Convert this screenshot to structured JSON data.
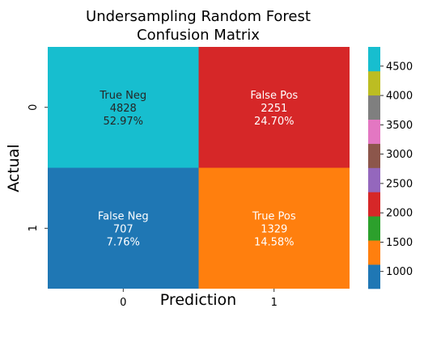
{
  "chart_data": {
    "type": "heatmap",
    "title_lines": [
      "Undersampling Random Forest",
      "Confusion Matrix"
    ],
    "xlabel": "Prediction",
    "ylabel": "Actual",
    "x_categories": [
      "0",
      "1"
    ],
    "y_categories": [
      "0",
      "1"
    ],
    "cells": [
      {
        "row": 0,
        "col": 0,
        "label": "True Neg",
        "count": "4828",
        "percent": "52.97%",
        "value": 4828,
        "color": "#17becf"
      },
      {
        "row": 0,
        "col": 1,
        "label": "False Pos",
        "count": "2251",
        "percent": "24.70%",
        "value": 2251,
        "color": "#d62728"
      },
      {
        "row": 1,
        "col": 0,
        "label": "False Neg",
        "count": "707",
        "percent": "7.76%",
        "value": 707,
        "color": "#1f77b4"
      },
      {
        "row": 1,
        "col": 1,
        "label": "True Pos",
        "count": "1329",
        "percent": "14.58%",
        "value": 1329,
        "color": "#ff7f0e"
      }
    ],
    "colorbar": {
      "range": [
        707,
        4828
      ],
      "ticks": [
        "1000",
        "1500",
        "2000",
        "2500",
        "3000",
        "3500",
        "4000",
        "4500"
      ],
      "colors": [
        "#1f77b4",
        "#ff7f0e",
        "#2ca02c",
        "#d62728",
        "#9467bd",
        "#8c564b",
        "#e377c2",
        "#7f7f7f",
        "#bcbd22",
        "#17becf"
      ]
    }
  }
}
